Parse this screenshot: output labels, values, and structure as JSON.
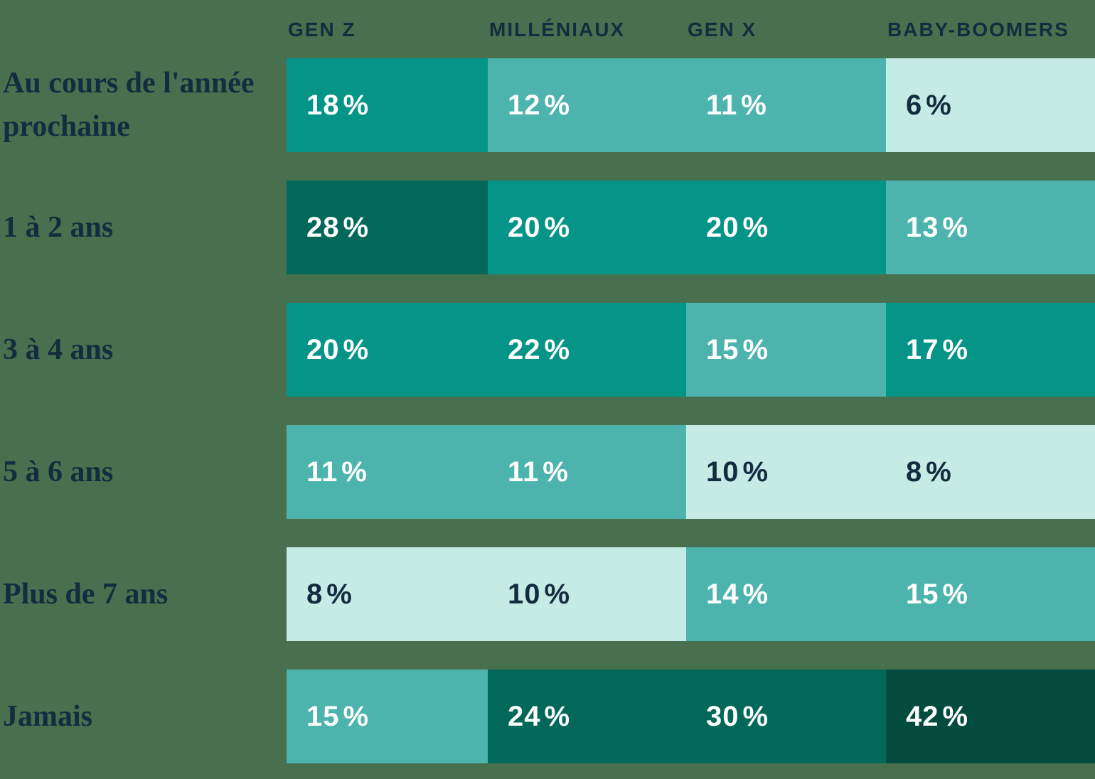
{
  "chart_data": {
    "type": "heatmap",
    "unit": "%",
    "columns": [
      "GEN Z",
      "MILLÉNIAUX",
      "GEN X",
      "BABY-BOOMERS"
    ],
    "rows": [
      {
        "label": "Au cours de l'année\nprochaine",
        "cells": [
          {
            "v": "18",
            "tone": "teal"
          },
          {
            "v": "12",
            "tone": "medium"
          },
          {
            "v": "11",
            "tone": "medium"
          },
          {
            "v": "6",
            "tone": "light"
          }
        ]
      },
      {
        "label": "1 à 2 ans",
        "cells": [
          {
            "v": "28",
            "tone": "dark"
          },
          {
            "v": "20",
            "tone": "teal"
          },
          {
            "v": "20",
            "tone": "teal"
          },
          {
            "v": "13",
            "tone": "medium"
          }
        ]
      },
      {
        "label": "3 à 4 ans",
        "cells": [
          {
            "v": "20",
            "tone": "teal"
          },
          {
            "v": "22",
            "tone": "teal"
          },
          {
            "v": "15",
            "tone": "medium"
          },
          {
            "v": "17",
            "tone": "teal"
          }
        ]
      },
      {
        "label": "5 à 6 ans",
        "cells": [
          {
            "v": "11",
            "tone": "medium"
          },
          {
            "v": "11",
            "tone": "medium"
          },
          {
            "v": "10",
            "tone": "light"
          },
          {
            "v": "8",
            "tone": "light"
          }
        ]
      },
      {
        "label": "Plus de 7 ans",
        "cells": [
          {
            "v": "8",
            "tone": "light"
          },
          {
            "v": "10",
            "tone": "light"
          },
          {
            "v": "14",
            "tone": "medium"
          },
          {
            "v": "15",
            "tone": "medium"
          }
        ]
      },
      {
        "label": "Jamais",
        "cells": [
          {
            "v": "15",
            "tone": "medium"
          },
          {
            "v": "24",
            "tone": "dark"
          },
          {
            "v": "30",
            "tone": "dark"
          },
          {
            "v": "42",
            "tone": "darkest"
          }
        ]
      }
    ],
    "legend_position": "none",
    "grid": "off",
    "palette": {
      "darkest": "#024b3e",
      "dark": "#01685a",
      "teal": "#049488",
      "medium": "#4db4ad",
      "light": "#c5ebe5",
      "background": "#48704e",
      "text_dark": "#132c3f",
      "text_light": "#ffffff"
    }
  }
}
